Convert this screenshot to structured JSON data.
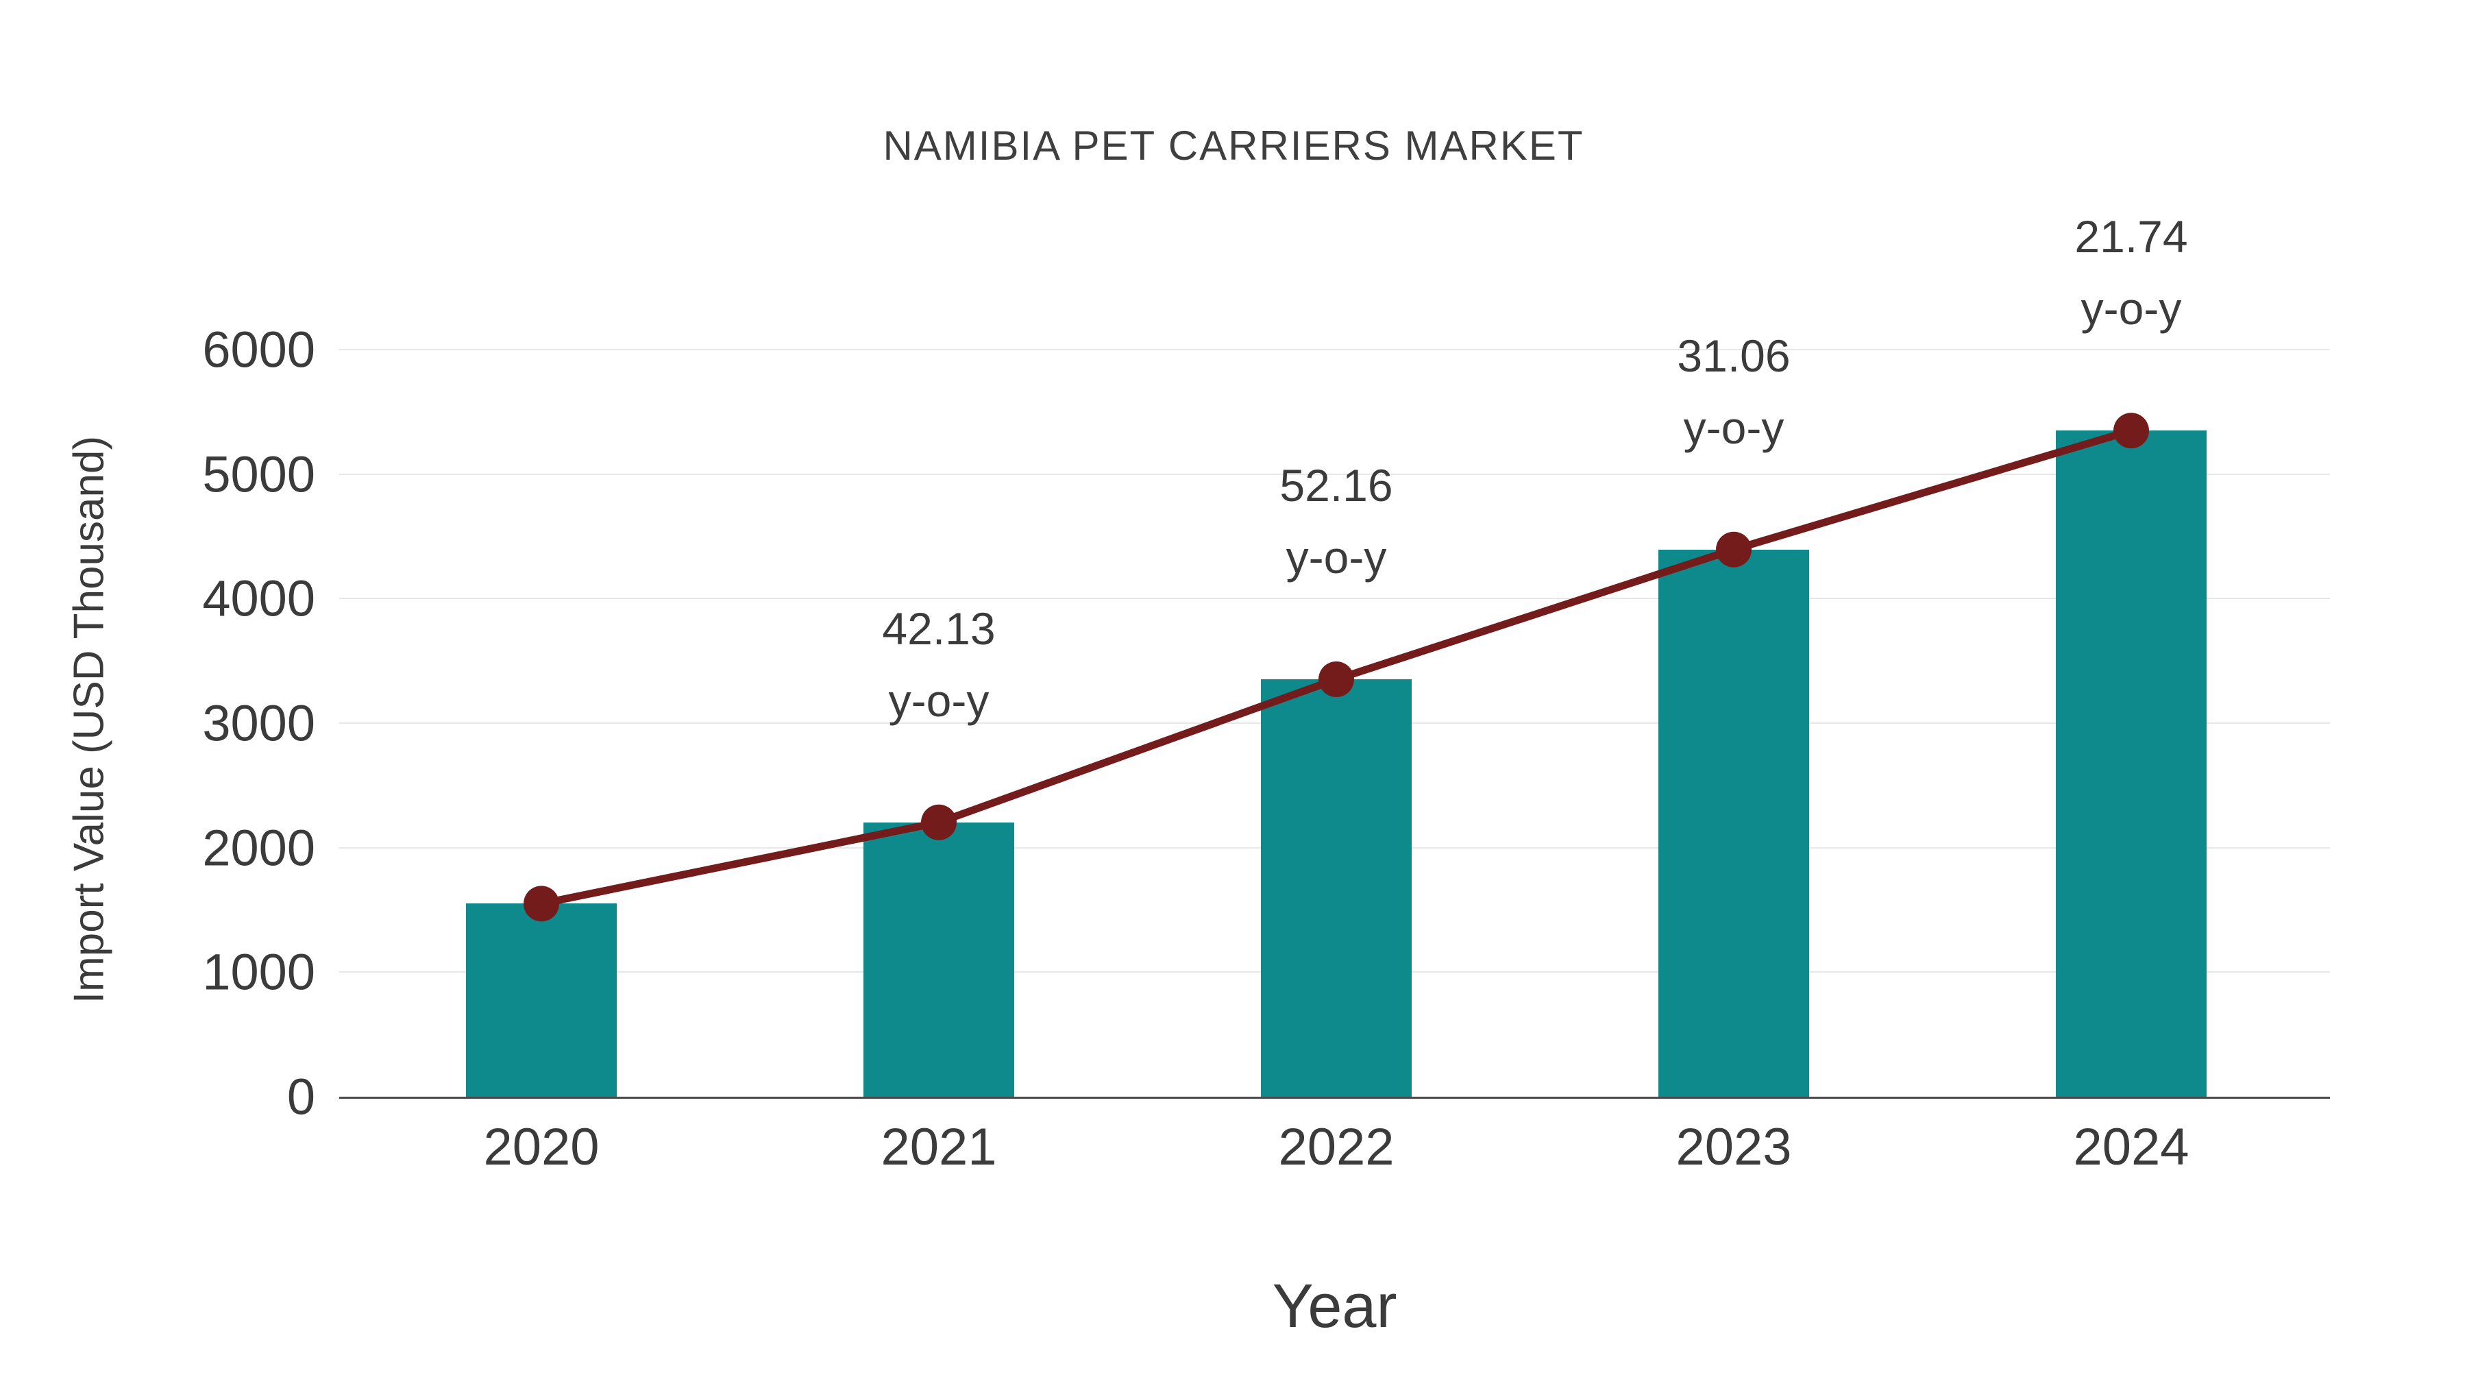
{
  "chart_data": {
    "type": "bar",
    "title": "NAMIBIA PET CARRIERS MARKET",
    "xlabel": "Year",
    "ylabel": "Import Value (USD Thousand)",
    "categories": [
      "2020",
      "2021",
      "2022",
      "2023",
      "2024"
    ],
    "series": [
      {
        "name": "Import Value",
        "type": "bar",
        "values": [
          1550,
          2203,
          3352,
          4394,
          5349
        ]
      },
      {
        "name": "y-o-y growth line",
        "type": "line",
        "values": [
          1550,
          2203,
          3352,
          4394,
          5349
        ]
      }
    ],
    "annotations": [
      {
        "category": "2021",
        "line1": "42.13",
        "line2": "y-o-y"
      },
      {
        "category": "2022",
        "line1": "52.16",
        "line2": "y-o-y"
      },
      {
        "category": "2023",
        "line1": "31.06",
        "line2": "y-o-y"
      },
      {
        "category": "2024",
        "line1": "21.74",
        "line2": "y-o-y"
      }
    ],
    "ylim": [
      0,
      6000
    ],
    "ytick_step": 1000,
    "grid": true,
    "legend": "none",
    "colors": {
      "bar": "#0e8a8c",
      "line": "#741b1b",
      "marker": "#741b1b",
      "grid": "#e7e7e7",
      "axis": "#4a4a4a",
      "text": "#3b3b3b"
    }
  }
}
